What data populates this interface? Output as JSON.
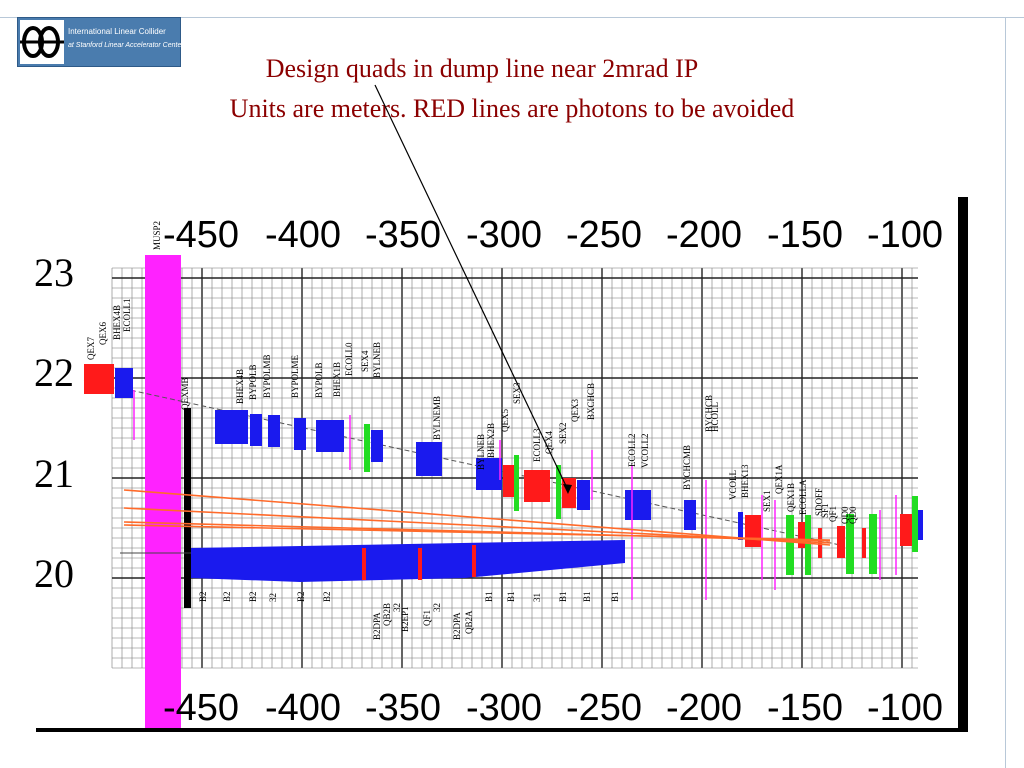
{
  "logo": {
    "line1": "International Linear Collider",
    "line2": "at Stanford Linear Accelerator Center",
    "brand_color": "#4a7cae"
  },
  "title": {
    "line1": "Design quads in dump line near 2mrad  IP",
    "line2": "Units are meters. RED lines are photons to be avoided",
    "color": "#8b0000"
  },
  "diagram": {
    "x_ticks": [
      "-450",
      "-400",
      "-350",
      "-300",
      "-250",
      "-200",
      "-150",
      "-100"
    ],
    "y_ticks": [
      "23",
      "22",
      "21",
      "20"
    ],
    "marker_label": "MUSP2",
    "colors": {
      "photon_lines": "#ff6a2a",
      "quad_red": "#ff1a1a",
      "bend_blue": "#1a1aee",
      "collimator_green": "#22dd22",
      "marker_magenta": "#ff22ff",
      "grid": "#444444"
    },
    "element_labels": [
      "QEX7",
      "QEX6",
      "BHEX4B",
      "ECOLL1",
      "QEXMB",
      "BHEX4B",
      "BYPOLB",
      "BYPOLMB",
      "BYPOLME",
      "BYPOLB",
      "BHEX1B",
      "ECOLL0",
      "SEX4",
      "BYLNEB",
      "BYLNEMB",
      "BYLNEB",
      "BHEX2B",
      "QEX5",
      "SEX3",
      "ECOLL3",
      "QEX4",
      "SEX2",
      "QEX3",
      "BXCHCB",
      "ECOLL2",
      "VCOLL2",
      "BYCHCMB",
      "BYCHCB",
      "HCOLL",
      "VCOLL",
      "BHEX13",
      "SEX1",
      "QEX1A",
      "QEX1B",
      "ECOLLA",
      "SDOFF",
      "SF1",
      "QF1",
      "QD0",
      "QD0",
      "B2",
      "B2",
      "B2",
      "32",
      "B2",
      "B2",
      "B2DPA",
      "QB2B",
      "32",
      "B2EP1",
      "QF1",
      "32",
      "B2DPA",
      "QB2A",
      "B1",
      "B1",
      "31",
      "B1",
      "B1",
      "B1"
    ]
  }
}
